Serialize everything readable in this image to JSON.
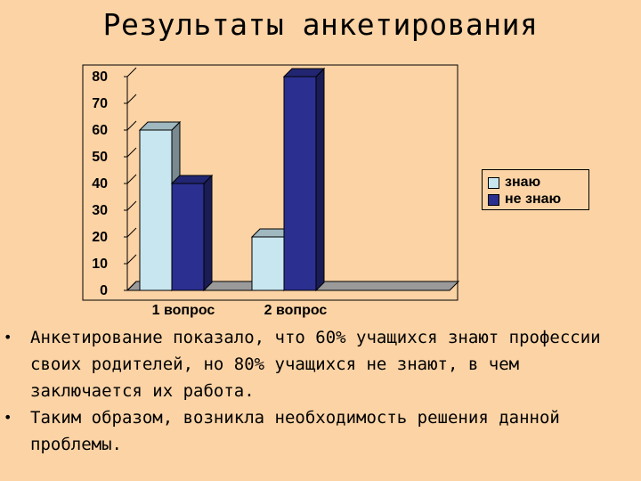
{
  "title": "Результаты анкетирования",
  "chart_data": {
    "type": "bar",
    "categories": [
      "1 вопрос",
      "2 вопрос",
      ""
    ],
    "series": [
      {
        "name": "знаю",
        "values": [
          60,
          20,
          null
        ],
        "color": "#c8e6ef"
      },
      {
        "name": "не знаю",
        "values": [
          40,
          80,
          null
        ],
        "color": "#2b2f8f"
      }
    ],
    "ylim": [
      0,
      80
    ],
    "yticks": [
      0,
      10,
      20,
      30,
      40,
      50,
      60,
      70,
      80
    ],
    "grid": false,
    "legend": "right",
    "style": "3d"
  },
  "bullets": [
    " Анкетирование показало, что  60% учащихся знают профессии своих родителей, но 80% учащихся не знают, в чем заключается их работа.",
    "Таким образом, возникла необходимость решения данной проблемы."
  ]
}
